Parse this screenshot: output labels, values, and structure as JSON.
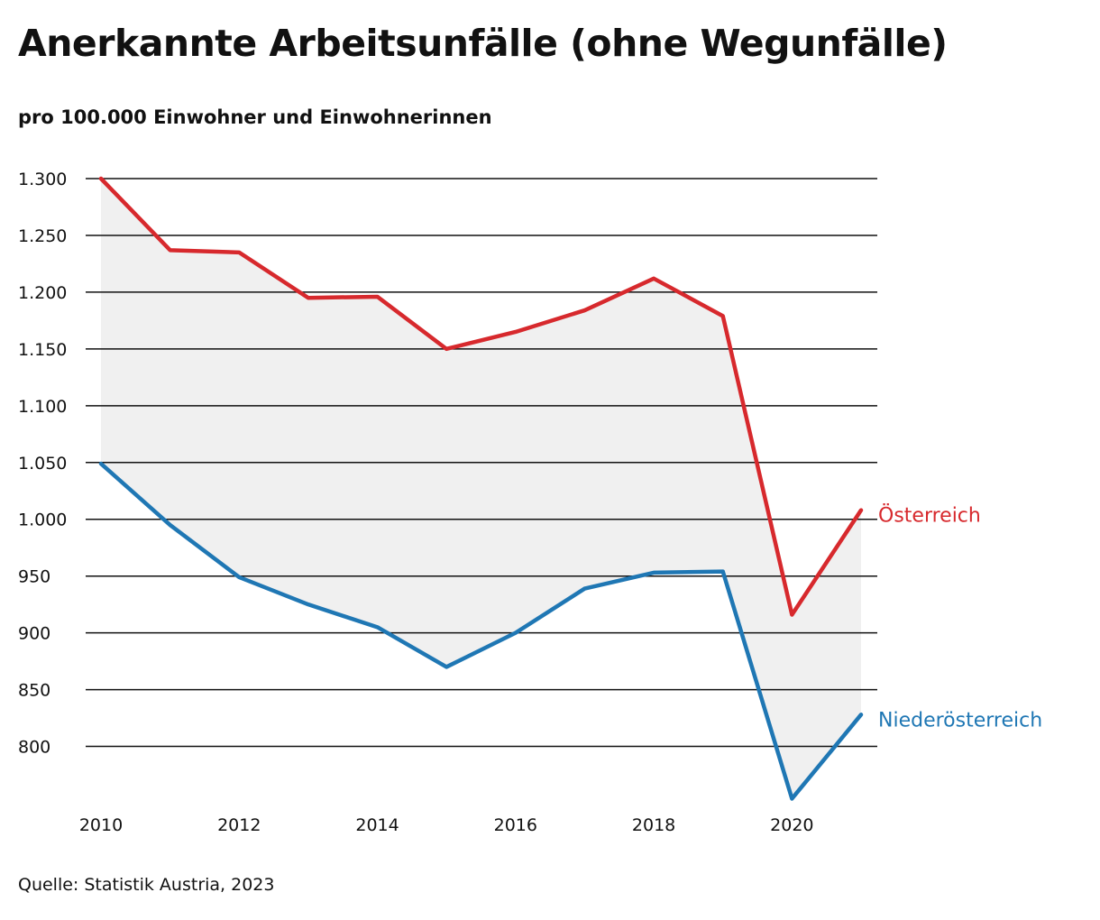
{
  "title": "Anerkannte Arbeitsunfälle (ohne Wegunfälle)",
  "subtitle": "pro 100.000 Einwohner und Einwohnerinnen",
  "source": "Quelle: Statistik Austria, 2023",
  "chart_data": {
    "type": "line",
    "x": [
      2010,
      2011,
      2012,
      2013,
      2014,
      2015,
      2016,
      2017,
      2018,
      2019,
      2020,
      2021
    ],
    "x_tick_values": [
      2010,
      2012,
      2014,
      2016,
      2018,
      2020
    ],
    "x_tick_labels": [
      "2010",
      "2012",
      "2014",
      "2016",
      "2018",
      "2020"
    ],
    "y_tick_values": [
      1300,
      1250,
      1200,
      1150,
      1100,
      1050,
      1000,
      950,
      900,
      850,
      800
    ],
    "y_tick_labels": [
      "1.300",
      "1.250",
      "1.200",
      "1.150",
      "1.100",
      "1.050",
      "1.000",
      "950",
      "900",
      "850",
      "800"
    ],
    "xlim": [
      2010,
      2021
    ],
    "ylim": [
      752,
      1300
    ],
    "grid": "horizontal",
    "area_between_series": true,
    "area_color": "#f0f0f0",
    "series": [
      {
        "name": "Österreich",
        "color": "#d7292d",
        "values": [
          1300,
          1237,
          1235,
          1195,
          1196,
          1150,
          1165,
          1184,
          1212,
          1179,
          916,
          1008
        ]
      },
      {
        "name": "Niederösterreich",
        "color": "#1f77b4",
        "values": [
          1049,
          995,
          949,
          925,
          905,
          870,
          900,
          939,
          953,
          954,
          754,
          828
        ]
      }
    ]
  }
}
